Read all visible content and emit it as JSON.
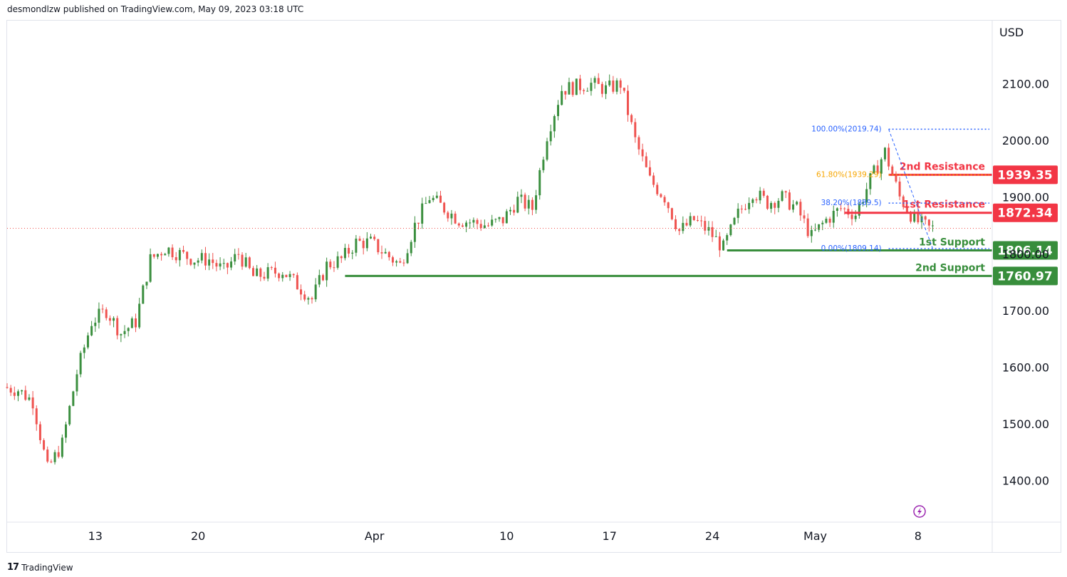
{
  "header": {
    "publisher": "desmondlzw published on TradingView.com, May 09, 2023 03:18 UTC"
  },
  "footer": {
    "brand": "TradingView"
  },
  "chart_data": {
    "type": "candlestick",
    "currency_label": "USD",
    "y_axis": {
      "ticks": [
        1400,
        1500,
        1600,
        1700,
        1800,
        1900,
        2000,
        2100
      ],
      "tick_labels": [
        "1400.00",
        "1500.00",
        "1600.00",
        "1700.00",
        "1800.00",
        "1900.00",
        "2000.00",
        "2100.00"
      ],
      "range": [
        1328,
        2210
      ]
    },
    "x_axis": {
      "tick_labels": [
        "13",
        "20",
        "Apr",
        "10",
        "17",
        "24",
        "May",
        "8"
      ],
      "range_dates": [
        "2023-03-07",
        "2023-05-13"
      ]
    },
    "price_path": [
      {
        "date": "2023-03-07",
        "price": 1565
      },
      {
        "date": "2023-03-08",
        "price": 1560
      },
      {
        "date": "2023-03-09",
        "price": 1540
      },
      {
        "date": "2023-03-10",
        "price": 1420
      },
      {
        "date": "2023-03-11",
        "price": 1465
      },
      {
        "date": "2023-03-12",
        "price": 1590
      },
      {
        "date": "2023-03-13",
        "price": 1680
      },
      {
        "date": "2023-03-14",
        "price": 1700
      },
      {
        "date": "2023-03-15",
        "price": 1660
      },
      {
        "date": "2023-03-16",
        "price": 1680
      },
      {
        "date": "2023-03-17",
        "price": 1790
      },
      {
        "date": "2023-03-18",
        "price": 1810
      },
      {
        "date": "2023-03-19",
        "price": 1800
      },
      {
        "date": "2023-03-20",
        "price": 1790
      },
      {
        "date": "2023-03-21",
        "price": 1790
      },
      {
        "date": "2023-03-22",
        "price": 1770
      },
      {
        "date": "2023-03-23",
        "price": 1800
      },
      {
        "date": "2023-03-24",
        "price": 1760
      },
      {
        "date": "2023-03-25",
        "price": 1765
      },
      {
        "date": "2023-03-26",
        "price": 1770
      },
      {
        "date": "2023-03-27",
        "price": 1745
      },
      {
        "date": "2023-03-28",
        "price": 1720
      },
      {
        "date": "2023-03-29",
        "price": 1780
      },
      {
        "date": "2023-03-30",
        "price": 1790
      },
      {
        "date": "2023-03-31",
        "price": 1820
      },
      {
        "date": "2023-04-01",
        "price": 1820
      },
      {
        "date": "2023-04-02",
        "price": 1800
      },
      {
        "date": "2023-04-03",
        "price": 1780
      },
      {
        "date": "2023-04-04",
        "price": 1850
      },
      {
        "date": "2023-04-05",
        "price": 1900
      },
      {
        "date": "2023-04-06",
        "price": 1880
      },
      {
        "date": "2023-04-07",
        "price": 1860
      },
      {
        "date": "2023-04-08",
        "price": 1855
      },
      {
        "date": "2023-04-09",
        "price": 1850
      },
      {
        "date": "2023-04-10",
        "price": 1860
      },
      {
        "date": "2023-04-11",
        "price": 1895
      },
      {
        "date": "2023-04-12",
        "price": 1880
      },
      {
        "date": "2023-04-13",
        "price": 2010
      },
      {
        "date": "2023-04-14",
        "price": 2090
      },
      {
        "date": "2023-04-15",
        "price": 2095
      },
      {
        "date": "2023-04-16",
        "price": 2100
      },
      {
        "date": "2023-04-17",
        "price": 2090
      },
      {
        "date": "2023-04-18",
        "price": 2100
      },
      {
        "date": "2023-04-19",
        "price": 2000
      },
      {
        "date": "2023-04-20",
        "price": 1930
      },
      {
        "date": "2023-04-21",
        "price": 1900
      },
      {
        "date": "2023-04-22",
        "price": 1840
      },
      {
        "date": "2023-04-23",
        "price": 1860
      },
      {
        "date": "2023-04-24",
        "price": 1840
      },
      {
        "date": "2023-04-25",
        "price": 1810
      },
      {
        "date": "2023-04-26",
        "price": 1870
      },
      {
        "date": "2023-04-27",
        "price": 1910
      },
      {
        "date": "2023-04-28",
        "price": 1890
      },
      {
        "date": "2023-04-29",
        "price": 1900
      },
      {
        "date": "2023-04-30",
        "price": 1880
      },
      {
        "date": "2023-05-01",
        "price": 1830
      },
      {
        "date": "2023-05-02",
        "price": 1860
      },
      {
        "date": "2023-05-03",
        "price": 1880
      },
      {
        "date": "2023-05-04",
        "price": 1870
      },
      {
        "date": "2023-05-05",
        "price": 1930
      },
      {
        "date": "2023-05-06",
        "price": 1980
      },
      {
        "date": "2023-05-07",
        "price": 1900
      },
      {
        "date": "2023-05-08",
        "price": 1860
      },
      {
        "date": "2023-05-09",
        "price": 1845
      }
    ],
    "current_price_line": 1845,
    "horizontal_levels": [
      {
        "label": "2nd Resistance",
        "value": 1939.35,
        "value_text": "1939.35",
        "color": "#f23645",
        "start_date": "2023-05-06"
      },
      {
        "label": "1st Resistance",
        "value": 1872.34,
        "value_text": "1872.34",
        "color": "#f23645",
        "start_date": "2023-05-03"
      },
      {
        "label": "1st Support",
        "value": 1806.14,
        "value_text": "1806.14",
        "color": "#388e3c",
        "start_date": "2023-04-25"
      },
      {
        "label": "2nd Support",
        "value": 1760.97,
        "value_text": "1760.97",
        "color": "#388e3c",
        "start_date": "2023-03-30"
      }
    ],
    "fibonacci": [
      {
        "label": "100.00%(2019.74)",
        "value": 2019.74,
        "color": "#2962ff"
      },
      {
        "label": "61.80%(1939.29)",
        "value": 1939.29,
        "color": "#f7a600"
      },
      {
        "label": "38.20%(1889.5)",
        "value": 1889.5,
        "color": "#2962ff"
      },
      {
        "label": "0.00%(1809.14)",
        "value": 1809.14,
        "color": "#2962ff"
      }
    ]
  }
}
